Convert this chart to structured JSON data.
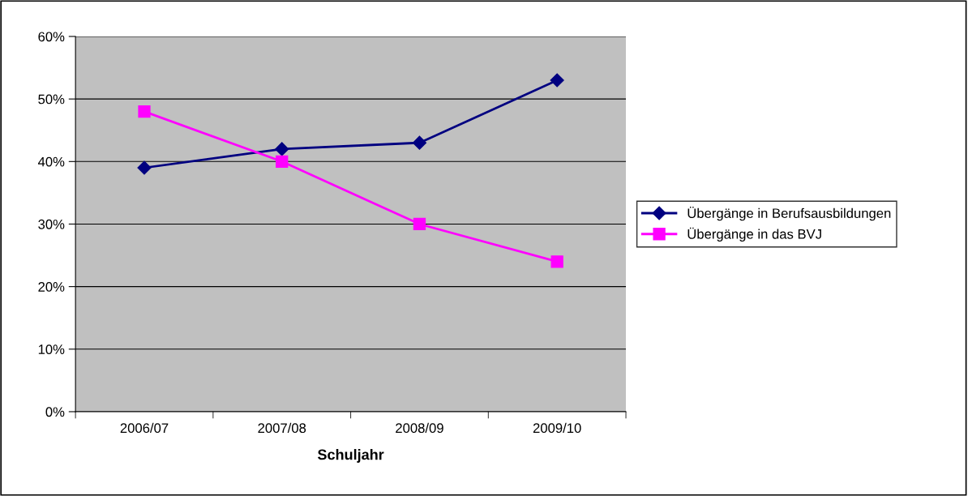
{
  "chart_data": {
    "type": "line",
    "xlabel": "Schuljahr",
    "categories": [
      "2006/07",
      "2007/08",
      "2008/09",
      "2009/10"
    ],
    "series": [
      {
        "name": "Übergänge in Berufsausbildungen",
        "color": "#000080",
        "marker": "diamond",
        "values": [
          39,
          42,
          43,
          53
        ]
      },
      {
        "name": "Übergänge in das BVJ",
        "color": "#ff00ff",
        "marker": "square",
        "values": [
          48,
          40,
          30,
          24
        ]
      }
    ],
    "ylim": [
      0,
      60
    ],
    "yticks": [
      {
        "value": 0,
        "label": "0%"
      },
      {
        "value": 10,
        "label": "10%"
      },
      {
        "value": 20,
        "label": "20%"
      },
      {
        "value": 30,
        "label": "30%"
      },
      {
        "value": 40,
        "label": "40%"
      },
      {
        "value": 50,
        "label": "50%"
      },
      {
        "value": 60,
        "label": "60%"
      }
    ],
    "grid": "y",
    "legend": "right",
    "line_style": "solid"
  }
}
